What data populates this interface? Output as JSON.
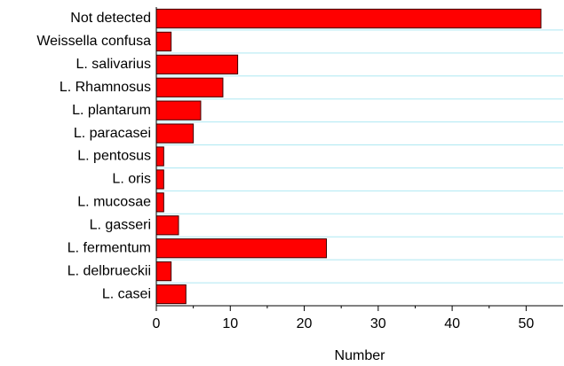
{
  "chart_data": {
    "type": "bar",
    "orientation": "horizontal",
    "categories": [
      "Not detected",
      "Weissella confusa",
      "L. salivarius",
      "L. Rhamnosus",
      "L. plantarum",
      "L. paracasei",
      "L. pentosus",
      "L. oris",
      "L. mucosae",
      "L. gasseri",
      "L. fermentum",
      "L. delbrueckii",
      "L. casei"
    ],
    "values": [
      52,
      2,
      11,
      9,
      6,
      5,
      1,
      1,
      1,
      3,
      23,
      2,
      4
    ],
    "color": "#ff0000",
    "x_label": "Number",
    "xlim": [
      0,
      55
    ],
    "xticks": [
      0,
      10,
      20,
      30,
      40,
      50
    ],
    "grid": true
  }
}
